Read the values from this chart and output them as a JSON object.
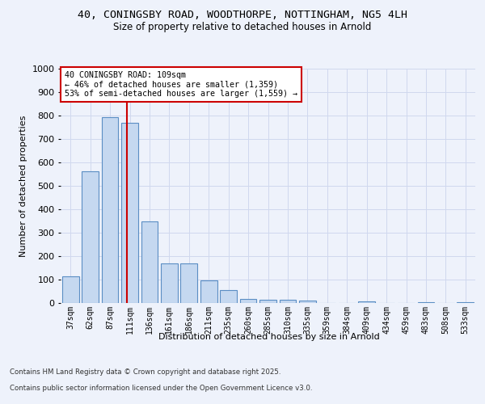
{
  "title_line1": "40, CONINGSBY ROAD, WOODTHORPE, NOTTINGHAM, NG5 4LH",
  "title_line2": "Size of property relative to detached houses in Arnold",
  "xlabel": "Distribution of detached houses by size in Arnold",
  "ylabel": "Number of detached properties",
  "categories": [
    "37sqm",
    "62sqm",
    "87sqm",
    "111sqm",
    "136sqm",
    "161sqm",
    "186sqm",
    "211sqm",
    "235sqm",
    "260sqm",
    "285sqm",
    "310sqm",
    "335sqm",
    "359sqm",
    "384sqm",
    "409sqm",
    "434sqm",
    "459sqm",
    "483sqm",
    "508sqm",
    "533sqm"
  ],
  "values": [
    113,
    562,
    793,
    770,
    350,
    168,
    168,
    97,
    55,
    18,
    13,
    13,
    10,
    0,
    0,
    8,
    0,
    0,
    5,
    0,
    5
  ],
  "bar_color": "#c5d8f0",
  "bar_edge_color": "#5b8ec4",
  "grid_color": "#d0d8ee",
  "vline_x": 2.85,
  "annotation_title": "40 CONINGSBY ROAD: 109sqm",
  "annotation_line2": "← 46% of detached houses are smaller (1,359)",
  "annotation_line3": "53% of semi-detached houses are larger (1,559) →",
  "annotation_box_color": "#cc0000",
  "ylim": [
    0,
    1000
  ],
  "yticks": [
    0,
    100,
    200,
    300,
    400,
    500,
    600,
    700,
    800,
    900,
    1000
  ],
  "footnote1": "Contains HM Land Registry data © Crown copyright and database right 2025.",
  "footnote2": "Contains public sector information licensed under the Open Government Licence v3.0.",
  "background_color": "#eef2fb",
  "plot_bg_color": "#eef2fb"
}
